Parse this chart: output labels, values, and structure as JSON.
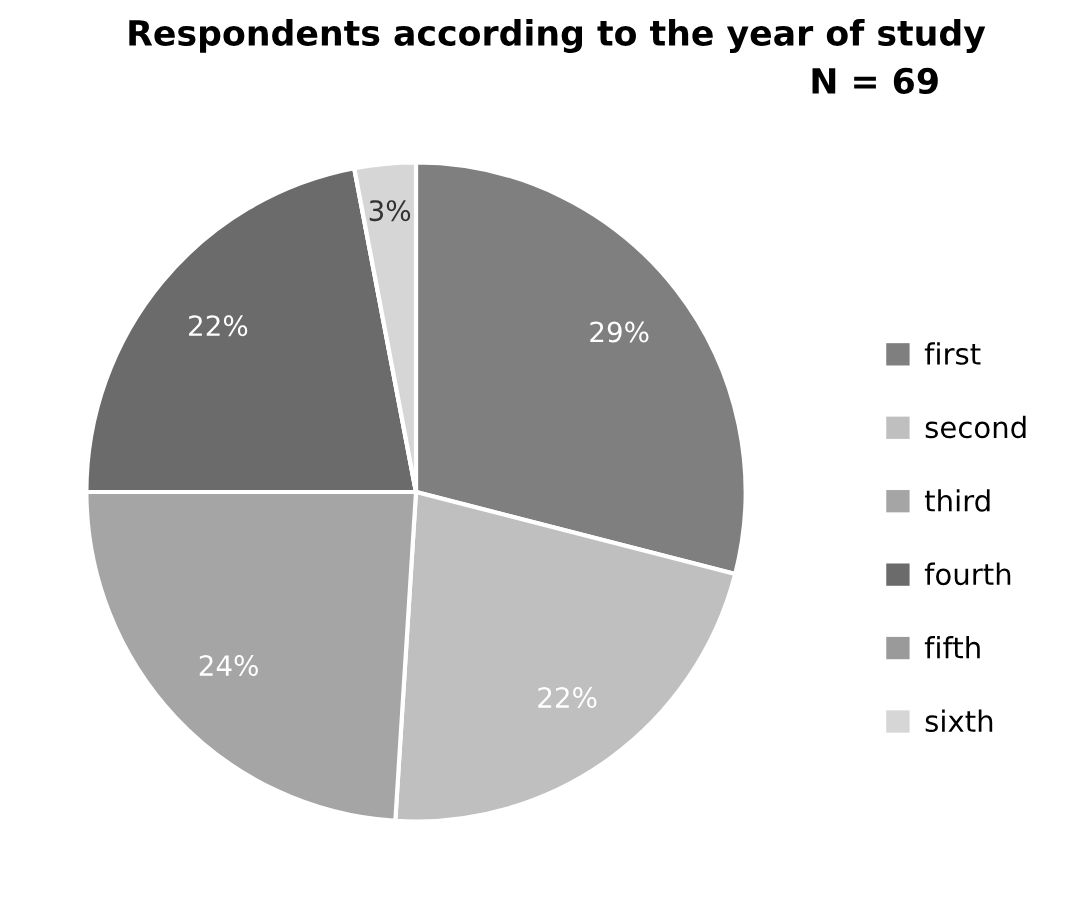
{
  "chart_data": {
    "type": "pie",
    "title": "Respondents according to the year of study",
    "subtitle": "N = 69",
    "categories": [
      "first",
      "second",
      "third",
      "fourth",
      "fifth",
      "sixth"
    ],
    "values": [
      29,
      22,
      24,
      22,
      0,
      3
    ],
    "value_labels": [
      "29%",
      "22%",
      "24%",
      "22%",
      null,
      "3%"
    ],
    "colors": [
      "#7f7f7f",
      "#bfbfbf",
      "#a5a5a5",
      "#6b6b6b",
      "#9a9a9a",
      "#d6d6d6"
    ],
    "legend": "right"
  }
}
